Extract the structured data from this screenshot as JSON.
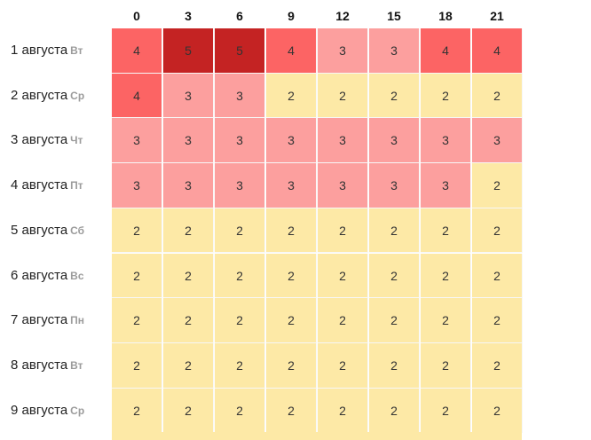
{
  "hours": [
    "0",
    "3",
    "6",
    "9",
    "12",
    "15",
    "18",
    "21"
  ],
  "days": [
    {
      "date": "1 августа",
      "weekday": "Вт",
      "values": [
        4,
        5,
        5,
        4,
        3,
        3,
        4,
        4
      ]
    },
    {
      "date": "2 августа",
      "weekday": "Ср",
      "values": [
        4,
        3,
        3,
        2,
        2,
        2,
        2,
        2
      ]
    },
    {
      "date": "3 августа",
      "weekday": "Чт",
      "values": [
        3,
        3,
        3,
        3,
        3,
        3,
        3,
        3
      ]
    },
    {
      "date": "4 августа",
      "weekday": "Пт",
      "values": [
        3,
        3,
        3,
        3,
        3,
        3,
        3,
        2
      ]
    },
    {
      "date": "5 августа",
      "weekday": "Сб",
      "values": [
        2,
        2,
        2,
        2,
        2,
        2,
        2,
        2
      ]
    },
    {
      "date": "6 августа",
      "weekday": "Вс",
      "values": [
        2,
        2,
        2,
        2,
        2,
        2,
        2,
        2
      ]
    },
    {
      "date": "7 августа",
      "weekday": "Пн",
      "values": [
        2,
        2,
        2,
        2,
        2,
        2,
        2,
        2
      ]
    },
    {
      "date": "8 августа",
      "weekday": "Вт",
      "values": [
        2,
        2,
        2,
        2,
        2,
        2,
        2,
        2
      ]
    },
    {
      "date": "9 августа",
      "weekday": "Ср",
      "values": [
        2,
        2,
        2,
        2,
        2,
        2,
        2,
        2
      ]
    }
  ],
  "level_colors": {
    "2": "#fde9a6",
    "3": "#fc9f9e",
    "4": "#fc6464",
    "5": "#c42323"
  }
}
